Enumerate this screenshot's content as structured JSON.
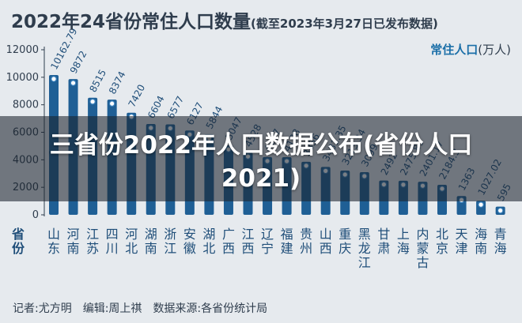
{
  "title": {
    "main": "2022年24省份常住人口数量",
    "sub": "(截至2023年3月27日已发布数据)"
  },
  "legend": {
    "label": "常住人口",
    "unit": "(万人)"
  },
  "axis_prefix": "省份",
  "footer": {
    "author": "记者:尤方明",
    "editor": "编辑:周上祺",
    "source": "数据来源:各省份统计局"
  },
  "overlay": {
    "text": "三省份2022年人口数据公布(省份人口2021)"
  },
  "colors": {
    "bar": "#1f5f95",
    "bar_light": "#3d83bd",
    "marker": "#ffffff",
    "axis": "#2f3d4d"
  },
  "chart_data": {
    "type": "bar",
    "title": "2022年24省份常住人口数量",
    "subtitle": "(截至2023年3月27日已发布数据)",
    "ylabel": "常住人口(万人)",
    "ylim": [
      0,
      12000
    ],
    "yticks": [
      0,
      2000,
      4000,
      6000,
      8000,
      10000,
      12000
    ],
    "grid": false,
    "categories": [
      "山东",
      "河南",
      "江苏",
      "四川",
      "河北",
      "湖南",
      "浙江",
      "安徽",
      "湖北",
      "广西",
      "江西",
      "辽宁",
      "福建",
      "贵州",
      "山西",
      "重庆",
      "黑龙江",
      "甘肃",
      "上海",
      "内蒙古",
      "北京",
      "天津",
      "海南",
      "青海"
    ],
    "values": [
      10162.79,
      9872,
      8515,
      8374,
      7420,
      6604,
      6577,
      6127,
      5844,
      5047,
      4528,
      4197,
      4188,
      3856,
      3481.35,
      3213.34,
      3099,
      2492,
      2475.89,
      2401.17,
      2184.3,
      1363,
      1027.02,
      595
    ],
    "value_labels": [
      "10162.79",
      "9872",
      "8515",
      "8374",
      "7420",
      "6604",
      "6577",
      "6127",
      "5844",
      "5047",
      "4528",
      "4197",
      "4188",
      "3856",
      "3481.35",
      "3213.34",
      "3099",
      "2492",
      "2475.89",
      "2401.17",
      "2184.3",
      "1363",
      "1027.02",
      "595"
    ]
  }
}
